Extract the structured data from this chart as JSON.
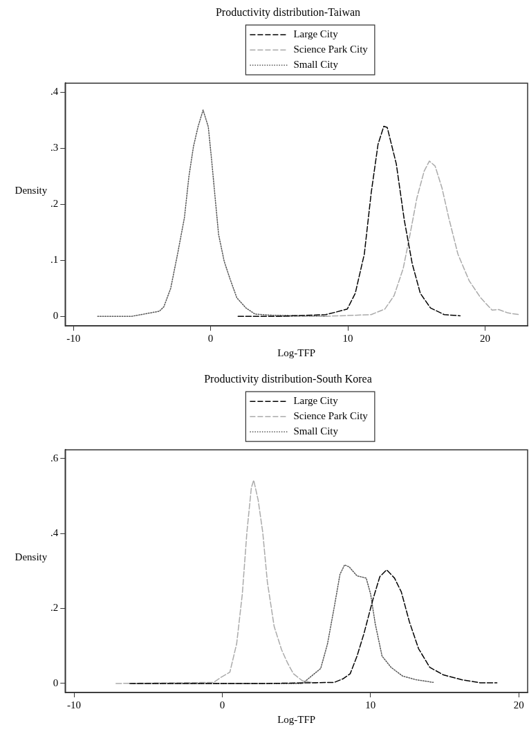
{
  "chart_data": [
    {
      "type": "line",
      "title": "Productivity distribution-Taiwan",
      "xlabel": "Log-TFP",
      "ylabel": "Density",
      "legend": "top",
      "grid": false,
      "marker": "none",
      "xlim": [
        -10.6,
        23.1
      ],
      "ylim": [
        -0.017,
        0.416
      ],
      "xticks": [
        -10,
        0,
        10,
        20
      ],
      "yticks": [
        0,
        {
          "value": 0.1,
          "label": ".1"
        },
        {
          "value": 0.2,
          "label": ".2"
        },
        {
          "value": 0.3,
          "label": ".3"
        },
        {
          "value": 0.4,
          "label": ".4"
        }
      ],
      "series": [
        {
          "name": "Large City",
          "color": "#000000",
          "line_style": "dashed",
          "x": [
            2,
            5,
            8.39,
            9.05,
            9.96,
            10.54,
            11.2,
            11.7,
            12.2,
            12.62,
            12.87,
            13.53,
            14.11,
            14.69,
            15.28,
            16.02,
            17.02,
            18.18
          ],
          "values": [
            0,
            0,
            0.003,
            0.007,
            0.013,
            0.041,
            0.111,
            0.22,
            0.307,
            0.339,
            0.337,
            0.272,
            0.172,
            0.094,
            0.041,
            0.015,
            0.003,
            0.001
          ]
        },
        {
          "name": "Science Park City",
          "color": "#aaaaaa",
          "line_style": "dashed",
          "x": [
            5,
            8.39,
            11.7,
            12.7,
            13.37,
            14.03,
            14.53,
            15.03,
            15.56,
            15.94,
            16.36,
            16.86,
            17.35,
            18.02,
            18.85,
            19.68,
            20.51,
            21.0,
            21.67,
            22.5
          ],
          "values": [
            0,
            0,
            0.003,
            0.013,
            0.037,
            0.085,
            0.146,
            0.211,
            0.259,
            0.277,
            0.268,
            0.229,
            0.176,
            0.111,
            0.063,
            0.033,
            0.011,
            0.012,
            0.006,
            0.003
          ]
        },
        {
          "name": "Small City",
          "color": "#555555",
          "line_style": "dotted",
          "x": [
            -8.23,
            -5.75,
            -3.74,
            -3.41,
            -2.91,
            -2.41,
            -1.91,
            -1.58,
            -1.25,
            -0.92,
            -0.55,
            -0.17,
            0.08,
            0.33,
            0.58,
            0.99,
            1.41,
            1.91,
            2.57,
            3.23,
            4.4,
            6.5,
            8.5
          ],
          "values": [
            0,
            0,
            0.009,
            0.017,
            0.05,
            0.111,
            0.176,
            0.25,
            0.303,
            0.338,
            0.368,
            0.338,
            0.277,
            0.211,
            0.146,
            0.098,
            0.067,
            0.033,
            0.015,
            0.004,
            0.002,
            0.001,
            0
          ]
        }
      ]
    },
    {
      "type": "line",
      "title": "Productivity distribution-South Korea",
      "xlabel": "Log-TFP",
      "ylabel": "Density",
      "legend": "top",
      "grid": false,
      "marker": "none",
      "xlim": [
        -10.6,
        20.6
      ],
      "ylim": [
        -0.024,
        0.623
      ],
      "xticks": [
        -10,
        0,
        10,
        20
      ],
      "yticks": [
        0,
        {
          "value": 0.2,
          "label": ".2"
        },
        {
          "value": 0.4,
          "label": ".4"
        },
        {
          "value": 0.6,
          "label": ".6"
        }
      ],
      "series": [
        {
          "name": "Large City",
          "color": "#000000",
          "line_style": "dashed",
          "x": [
            -6.24,
            3,
            7.56,
            8.17,
            8.63,
            9.09,
            9.55,
            10.17,
            10.63,
            11.09,
            11.62,
            12.08,
            12.62,
            13.24,
            14.0,
            14.92,
            16.15,
            17.38,
            18.53
          ],
          "values": [
            0,
            0,
            0.003,
            0.013,
            0.026,
            0.073,
            0.132,
            0.225,
            0.285,
            0.303,
            0.281,
            0.244,
            0.165,
            0.093,
            0.043,
            0.023,
            0.01,
            0.002,
            0.002
          ]
        },
        {
          "name": "Science Park City",
          "color": "#aaaaaa",
          "line_style": "dashed",
          "x": [
            -7.17,
            -0.57,
            -0.11,
            0.51,
            0.97,
            1.35,
            1.66,
            1.96,
            2.12,
            2.42,
            2.73,
            3.04,
            3.5,
            4.0,
            4.4,
            4.8,
            5.41,
            6.33
          ],
          "values": [
            0,
            0.003,
            0.016,
            0.03,
            0.106,
            0.238,
            0.403,
            0.522,
            0.542,
            0.489,
            0.403,
            0.271,
            0.152,
            0.09,
            0.055,
            0.026,
            0.007,
            0.001
          ]
        },
        {
          "name": "Small City",
          "color": "#555555",
          "line_style": "dotted",
          "x": [
            -6,
            2,
            5.41,
            6.64,
            7.1,
            7.56,
            7.94,
            8.25,
            8.56,
            9.09,
            9.71,
            10.01,
            10.32,
            10.78,
            11.39,
            12.16,
            13.08,
            14.23
          ],
          "values": [
            0,
            0,
            0,
            0.04,
            0.106,
            0.205,
            0.291,
            0.316,
            0.311,
            0.287,
            0.281,
            0.238,
            0.159,
            0.073,
            0.043,
            0.02,
            0.01,
            0.003
          ]
        }
      ]
    }
  ]
}
